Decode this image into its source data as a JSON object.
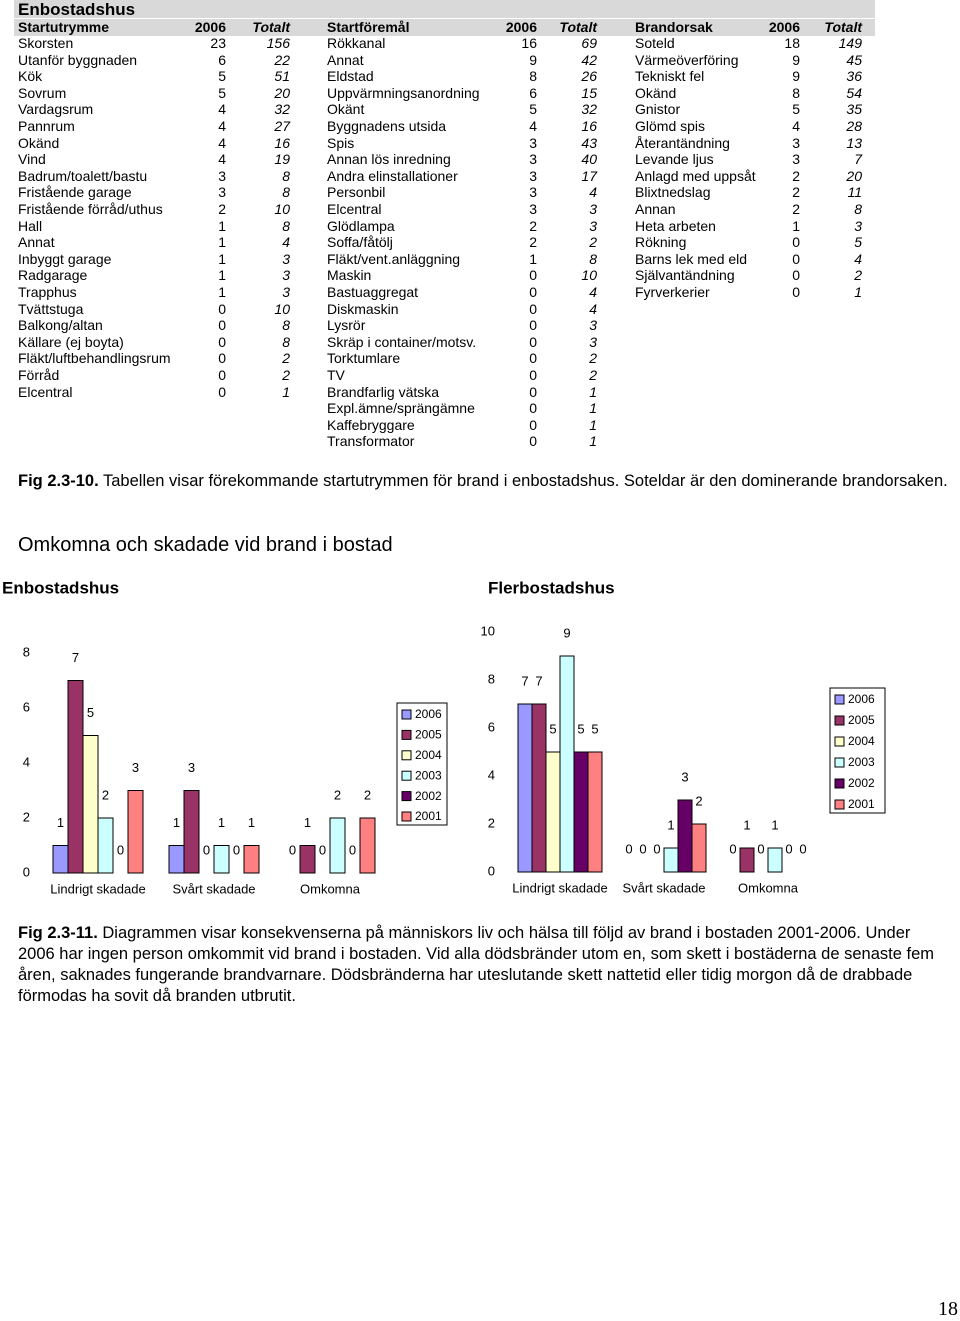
{
  "title": "Enbostadshus",
  "table": {
    "groups": [
      {
        "header": [
          "Startutrymme",
          "2006",
          "Totalt"
        ],
        "rows": [
          [
            "Skorsten",
            23,
            156
          ],
          [
            "Utanför byggnaden",
            6,
            22
          ],
          [
            "Kök",
            5,
            51
          ],
          [
            "Sovrum",
            5,
            20
          ],
          [
            "Vardagsrum",
            4,
            32
          ],
          [
            "Pannrum",
            4,
            27
          ],
          [
            "Okänd",
            4,
            16
          ],
          [
            "Vind",
            4,
            19
          ],
          [
            "Badrum/toalett/bastu",
            3,
            8
          ],
          [
            "Fristående garage",
            3,
            8
          ],
          [
            "Fristående förråd/uthus",
            2,
            10
          ],
          [
            "Hall",
            1,
            8
          ],
          [
            "Annat",
            1,
            4
          ],
          [
            "Inbyggt garage",
            1,
            3
          ],
          [
            "Radgarage",
            1,
            3
          ],
          [
            "Trapphus",
            1,
            3
          ],
          [
            "Tvättstuga",
            0,
            10
          ],
          [
            "Balkong/altan",
            0,
            8
          ],
          [
            "Källare (ej boyta)",
            0,
            8
          ],
          [
            "Fläkt/luftbehandlingsrum",
            0,
            2
          ],
          [
            "Förråd",
            0,
            2
          ],
          [
            "Elcentral",
            0,
            1
          ]
        ]
      },
      {
        "header": [
          "Startföremål",
          "2006",
          "Totalt"
        ],
        "rows": [
          [
            "Rökkanal",
            16,
            69
          ],
          [
            "Annat",
            9,
            42
          ],
          [
            "Eldstad",
            8,
            26
          ],
          [
            "Uppvärmningsanordning",
            6,
            15
          ],
          [
            "Okänt",
            5,
            32
          ],
          [
            "Byggnadens utsida",
            4,
            16
          ],
          [
            "Spis",
            3,
            43
          ],
          [
            "Annan lös inredning",
            3,
            40
          ],
          [
            "Andra elinstallationer",
            3,
            17
          ],
          [
            "Personbil",
            3,
            4
          ],
          [
            "Elcentral",
            3,
            3
          ],
          [
            "Glödlampa",
            2,
            3
          ],
          [
            "Soffa/fåtölj",
            2,
            2
          ],
          [
            "Fläkt/vent.anläggning",
            1,
            8
          ],
          [
            "Maskin",
            0,
            10
          ],
          [
            "Bastuaggregat",
            0,
            4
          ],
          [
            "Diskmaskin",
            0,
            4
          ],
          [
            "Lysrör",
            0,
            3
          ],
          [
            "Skräp i container/motsv.",
            0,
            3
          ],
          [
            "Torktumlare",
            0,
            2
          ],
          [
            "TV",
            0,
            2
          ],
          [
            "Brandfarlig vätska",
            0,
            1
          ],
          [
            "Expl.ämne/sprängämne",
            0,
            1
          ],
          [
            "Kaffebryggare",
            0,
            1
          ],
          [
            "Transformator",
            0,
            1
          ]
        ]
      },
      {
        "header": [
          "Brandorsak",
          "2006",
          "Totalt"
        ],
        "rows": [
          [
            "Soteld",
            18,
            149
          ],
          [
            "Värmeöverföring",
            9,
            45
          ],
          [
            "Tekniskt fel",
            9,
            36
          ],
          [
            "Okänd",
            8,
            54
          ],
          [
            "Gnistor",
            5,
            35
          ],
          [
            "Glömd spis",
            4,
            28
          ],
          [
            "Återantändning",
            3,
            13
          ],
          [
            "Levande ljus",
            3,
            7
          ],
          [
            "Anlagd med uppsåt",
            2,
            20
          ],
          [
            "Blixtnedslag",
            2,
            11
          ],
          [
            "Annan",
            2,
            8
          ],
          [
            "Heta arbeten",
            1,
            3
          ],
          [
            "Rökning",
            0,
            5
          ],
          [
            "Barns lek med eld",
            0,
            4
          ],
          [
            "Självantändning",
            0,
            2
          ],
          [
            "Fyrverkerier",
            0,
            1
          ]
        ]
      }
    ]
  },
  "caption1": {
    "label": "Fig 2.3-10.",
    "text": "Tabellen visar förekommande startutrymmen för brand i enbostadshus. Soteldar är den dominerande brandorsaken."
  },
  "heading": "Omkomna och skadade vid brand i bostad",
  "chart_data": [
    {
      "type": "bar",
      "title": "Enbostadshus",
      "categories": [
        "Lindrigt skadade",
        "Svårt skadade",
        "Omkomna"
      ],
      "ylim": [
        0,
        8
      ],
      "yticks": [
        0,
        2,
        4,
        6,
        8
      ],
      "series": [
        {
          "name": "2006",
          "color": "#9999ff",
          "values": [
            1,
            1,
            0
          ]
        },
        {
          "name": "2005",
          "color": "#993366",
          "values": [
            7,
            3,
            1
          ]
        },
        {
          "name": "2004",
          "color": "#ffffcc",
          "values": [
            5,
            0,
            0
          ]
        },
        {
          "name": "2003",
          "color": "#ccffff",
          "values": [
            2,
            1,
            2
          ]
        },
        {
          "name": "2002",
          "color": "#660066",
          "values": [
            0,
            0,
            0
          ]
        },
        {
          "name": "2001",
          "color": "#ff8080",
          "values": [
            3,
            1,
            2
          ]
        }
      ]
    },
    {
      "type": "bar",
      "title": "Flerbostadshus",
      "categories": [
        "Lindrigt skadade",
        "Svårt skadade",
        "Omkomna"
      ],
      "ylim": [
        0,
        10
      ],
      "yticks": [
        0,
        2,
        4,
        6,
        8,
        10
      ],
      "series": [
        {
          "name": "2006",
          "color": "#9999ff",
          "values": [
            7,
            0,
            0
          ]
        },
        {
          "name": "2005",
          "color": "#993366",
          "values": [
            7,
            0,
            1
          ]
        },
        {
          "name": "2004",
          "color": "#ffffcc",
          "values": [
            5,
            0,
            0
          ]
        },
        {
          "name": "2003",
          "color": "#ccffff",
          "values": [
            9,
            1,
            1
          ]
        },
        {
          "name": "2002",
          "color": "#660066",
          "values": [
            5,
            3,
            0
          ]
        },
        {
          "name": "2001",
          "color": "#ff8080",
          "values": [
            5,
            2,
            0
          ]
        }
      ]
    }
  ],
  "caption2": {
    "label": "Fig 2.3-11.",
    "text": "Diagrammen visar konsekvenserna på människors liv och hälsa till följd av brand i bostaden 2001-2006. Under 2006 har ingen person omkommit vid brand i bostaden. Vid alla dödsbränder utom en, som skett i bostäderna de senaste fem åren, saknades fungerande brandvarnare. Dödsbränderna har uteslutande skett nattetid eller tidig morgon då de drabbade förmodas ha sovit då branden utbrutit."
  },
  "page_number": "18"
}
